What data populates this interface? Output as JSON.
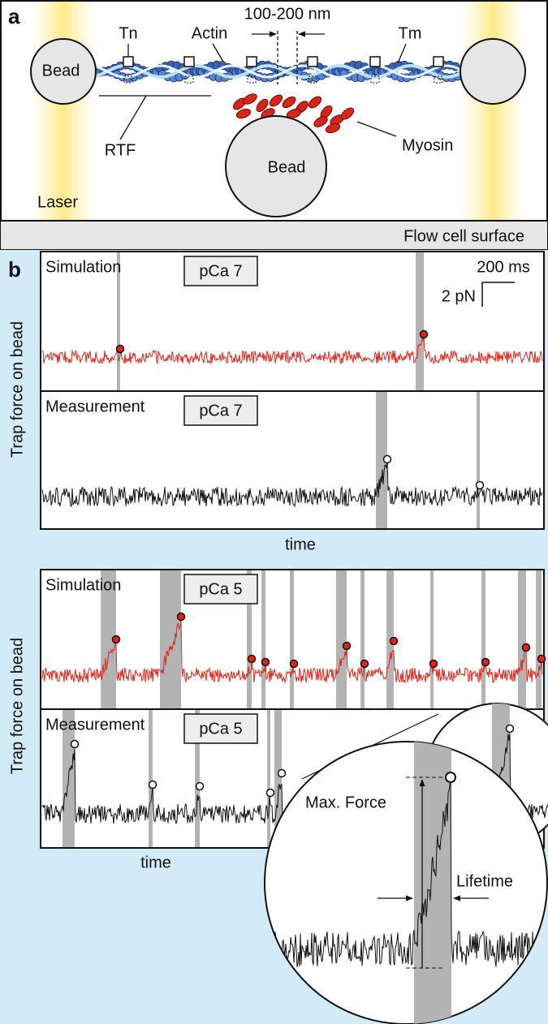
{
  "panel_a": {
    "label": "a",
    "spacing": "100-200 nm",
    "tn": "Tn",
    "actin": "Actin",
    "tm": "Tm",
    "rtf": "RTF",
    "myosin": "Myosin",
    "laser": "Laser",
    "beads": [
      "Bead",
      "Bead"
    ],
    "surface": "Flow cell surface"
  },
  "panel_b": {
    "label": "b",
    "y_labels": [
      "Trap force on bead",
      "Trap force on bead"
    ],
    "scale_bar": {
      "time": "200 ms",
      "force": "2 pN"
    },
    "traces": [
      {
        "kind": "Simulation",
        "condition": "pCa 7"
      },
      {
        "kind": "Measurement",
        "condition": "pCa 7"
      },
      {
        "kind": "Simulation",
        "condition": "pCa 5"
      },
      {
        "kind": "Measurement",
        "condition": "pCa 5"
      }
    ],
    "x_labels": [
      "time",
      "time"
    ],
    "inset": {
      "max_force": "Max. Force",
      "lifetime": "Lifetime"
    }
  }
}
